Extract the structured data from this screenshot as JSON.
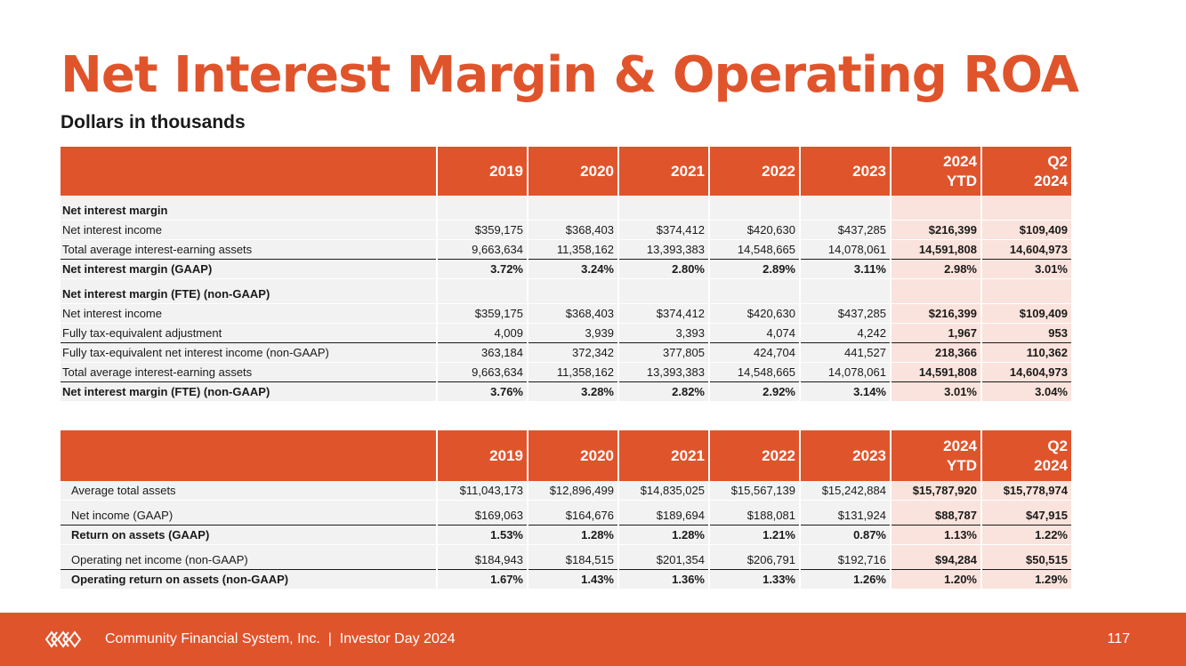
{
  "title": "Net Interest Margin & Operating ROA",
  "subtitle": "Dollars in thousands",
  "columns": [
    "2019",
    "2020",
    "2021",
    "2022",
    "2023",
    "2024 YTD",
    "Q2 2024"
  ],
  "col_header_lines": [
    [
      "2019"
    ],
    [
      "2020"
    ],
    [
      "2021"
    ],
    [
      "2022"
    ],
    [
      "2023"
    ],
    [
      "2024",
      "YTD"
    ],
    [
      "Q2",
      "2024"
    ]
  ],
  "nim_table": {
    "section_gaap": "Net interest margin",
    "rows_gaap": [
      {
        "label": "Net interest income",
        "values": [
          "$359,175",
          "$368,403",
          "$374,412",
          "$420,630",
          "$437,285",
          "$216,399",
          "$109,409"
        ]
      },
      {
        "label": "Total average interest-earning assets",
        "values": [
          "9,663,634",
          "11,358,162",
          "13,393,383",
          "14,548,665",
          "14,078,061",
          "14,591,808",
          "14,604,973"
        ]
      },
      {
        "label": "Net interest margin (GAAP)",
        "values": [
          "3.72%",
          "3.24%",
          "2.80%",
          "2.89%",
          "3.11%",
          "2.98%",
          "3.01%"
        ]
      }
    ],
    "section_fte": "Net interest margin (FTE) (non-GAAP)",
    "rows_fte": [
      {
        "label": "Net interest income",
        "values": [
          "$359,175",
          "$368,403",
          "$374,412",
          "$420,630",
          "$437,285",
          "$216,399",
          "$109,409"
        ]
      },
      {
        "label": "Fully tax-equivalent adjustment",
        "values": [
          "4,009",
          "3,939",
          "3,393",
          "4,074",
          "4,242",
          "1,967",
          "953"
        ]
      },
      {
        "label": "Fully tax-equivalent net interest income (non-GAAP)",
        "values": [
          "363,184",
          "372,342",
          "377,805",
          "424,704",
          "441,527",
          "218,366",
          "110,362"
        ]
      },
      {
        "label": "Total average interest-earning assets",
        "values": [
          "9,663,634",
          "11,358,162",
          "13,393,383",
          "14,548,665",
          "14,078,061",
          "14,591,808",
          "14,604,973"
        ]
      },
      {
        "label": "Net interest margin (FTE) (non-GAAP)",
        "values": [
          "3.76%",
          "3.28%",
          "2.82%",
          "2.92%",
          "3.14%",
          "3.01%",
          "3.04%"
        ]
      }
    ]
  },
  "roa_table": {
    "rows": [
      {
        "label": "Average total assets",
        "values": [
          "$11,043,173",
          "$12,896,499",
          "$14,835,025",
          "$15,567,139",
          "$15,242,884",
          "$15,787,920",
          "$15,778,974"
        ]
      },
      {
        "label": "Net income (GAAP)",
        "values": [
          "$169,063",
          "$164,676",
          "$189,694",
          "$188,081",
          "$131,924",
          "$88,787",
          "$47,915"
        ]
      },
      {
        "label": "Return on assets (GAAP)",
        "values": [
          "1.53%",
          "1.28%",
          "1.28%",
          "1.21%",
          "0.87%",
          "1.13%",
          "1.22%"
        ]
      },
      {
        "label": "Operating net income (non-GAAP)",
        "values": [
          "$184,943",
          "$184,515",
          "$201,354",
          "$206,791",
          "$192,716",
          "$94,284",
          "$50,515"
        ]
      },
      {
        "label": "Operating return on assets (non-GAAP)",
        "values": [
          "1.67%",
          "1.43%",
          "1.36%",
          "1.33%",
          "1.26%",
          "1.20%",
          "1.29%"
        ]
      }
    ]
  },
  "footer": {
    "company": "Community Financial System, Inc.",
    "separator": "|",
    "event": "Investor Day 2024",
    "page_number": "117",
    "logo_icon": "logo-icon"
  },
  "colors": {
    "accent": "#e0542c",
    "row_fill": "#f2f2f2",
    "highlight_fill": "#fae3dc"
  }
}
